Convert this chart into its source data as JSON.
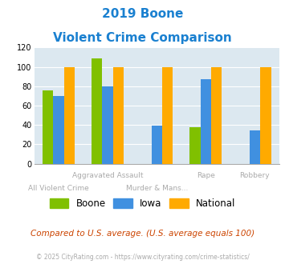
{
  "title_line1": "2019 Boone",
  "title_line2": "Violent Crime Comparison",
  "categories": [
    "All Violent Crime",
    "Aggravated Assault",
    "Murder & Mans...",
    "Rape",
    "Robbery"
  ],
  "boone": [
    76,
    109,
    0,
    38,
    0
  ],
  "iowa": [
    70,
    80,
    39,
    87,
    34
  ],
  "national": [
    100,
    100,
    100,
    100,
    100
  ],
  "color_boone": "#80c000",
  "color_iowa": "#4090e0",
  "color_national": "#ffaa00",
  "color_title": "#1a80d0",
  "color_bg": "#dce8f0",
  "color_xlabel": "#aaaaaa",
  "ylim": [
    0,
    120
  ],
  "yticks": [
    0,
    20,
    40,
    60,
    80,
    100,
    120
  ],
  "footnote1": "Compared to U.S. average. (U.S. average equals 100)",
  "footnote2": "© 2025 CityRating.com - https://www.cityrating.com/crime-statistics/",
  "footnote1_color": "#cc4400",
  "footnote2_color": "#aaaaaa",
  "x_top_labels": [
    "",
    "Aggravated Assault",
    "",
    "Rape",
    "Robbery"
  ],
  "x_bottom_labels": [
    "All Violent Crime",
    "",
    "Murder & Mans...",
    "",
    ""
  ]
}
